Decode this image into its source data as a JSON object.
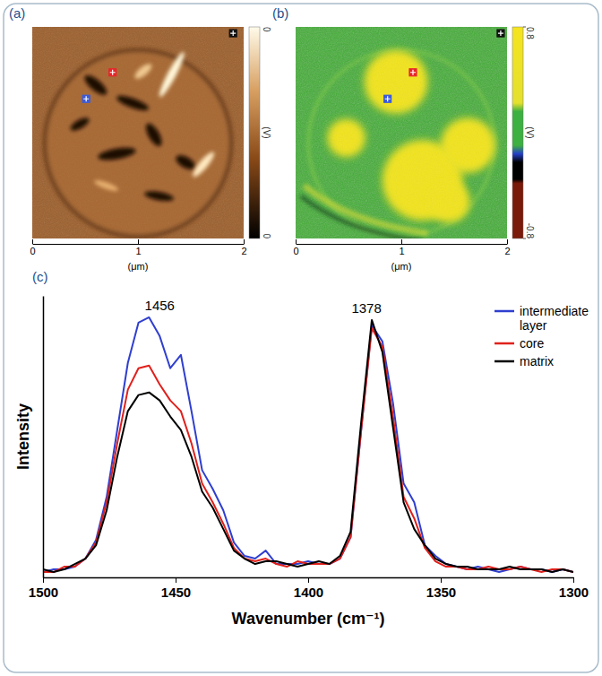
{
  "chart_data": [
    {
      "type": "image",
      "title": "(a)",
      "xlim": [
        0,
        2
      ],
      "ylim": [
        0,
        2
      ],
      "xticks": [
        0,
        1,
        2
      ],
      "xlabel": "(μm)",
      "tick_labels": "x",
      "markers": [
        {
          "x": 0.76,
          "y": 0.43,
          "color": "#e8262b"
        },
        {
          "x": 0.51,
          "y": 0.68,
          "color": "#3b5bd9"
        },
        {
          "x": 1.9,
          "y": 0.06,
          "color": "#111111"
        }
      ],
      "colorbar": {
        "labels": [
          "0",
          "(V)",
          "0"
        ]
      }
    },
    {
      "type": "image",
      "title": "(b)",
      "xlim": [
        0,
        2
      ],
      "ylim": [
        0,
        2
      ],
      "xticks": [
        0,
        1,
        2
      ],
      "xlabel": "(μm)",
      "tick_labels": "x",
      "markers": [
        {
          "x": 1.11,
          "y": 0.43,
          "color": "#e8262b"
        },
        {
          "x": 0.87,
          "y": 0.68,
          "color": "#3b5bd9"
        },
        {
          "x": 1.94,
          "y": 0.06,
          "color": "#111111"
        }
      ],
      "colorbar": {
        "range": [
          -0.8,
          0.8
        ],
        "ticks": [
          -0.8,
          0.8
        ],
        "unit": "(V)"
      }
    },
    {
      "type": "line",
      "title": "(c)",
      "xlabel": "Wavenumber (cm⁻¹)",
      "ylabel": "Intensity",
      "x": [
        1500,
        1496,
        1492,
        1488,
        1484,
        1480,
        1476,
        1472,
        1468,
        1464,
        1460,
        1456,
        1452,
        1448,
        1444,
        1440,
        1436,
        1432,
        1428,
        1424,
        1420,
        1416,
        1412,
        1408,
        1404,
        1400,
        1396,
        1392,
        1388,
        1384,
        1380,
        1376,
        1372,
        1368,
        1364,
        1360,
        1356,
        1352,
        1348,
        1344,
        1340,
        1336,
        1332,
        1328,
        1324,
        1320,
        1316,
        1312,
        1308,
        1304,
        1300
      ],
      "xlim": [
        1500,
        1300
      ],
      "xticks": [
        1500,
        1450,
        1400,
        1350,
        1300
      ],
      "ylim": [
        0,
        1.05
      ],
      "tick_labels": "x",
      "legend": "upper right",
      "series": [
        {
          "name": "intermediate layer",
          "color": "#2f3fd0",
          "values": [
            0.02,
            0.03,
            0.03,
            0.04,
            0.07,
            0.14,
            0.3,
            0.55,
            0.8,
            0.95,
            0.97,
            0.9,
            0.78,
            0.83,
            0.62,
            0.4,
            0.33,
            0.25,
            0.13,
            0.08,
            0.07,
            0.1,
            0.05,
            0.05,
            0.05,
            0.06,
            0.05,
            0.05,
            0.07,
            0.15,
            0.55,
            0.94,
            0.88,
            0.65,
            0.35,
            0.28,
            0.12,
            0.08,
            0.05,
            0.04,
            0.03,
            0.04,
            0.03,
            0.02,
            0.03,
            0.04,
            0.03,
            0.03,
            0.02,
            0.03,
            0.02
          ]
        },
        {
          "name": "core",
          "color": "#e0201c",
          "values": [
            0.02,
            0.02,
            0.04,
            0.04,
            0.07,
            0.13,
            0.28,
            0.5,
            0.7,
            0.78,
            0.79,
            0.72,
            0.66,
            0.62,
            0.5,
            0.35,
            0.28,
            0.2,
            0.11,
            0.07,
            0.06,
            0.07,
            0.05,
            0.04,
            0.06,
            0.05,
            0.05,
            0.05,
            0.07,
            0.15,
            0.55,
            0.93,
            0.86,
            0.6,
            0.3,
            0.22,
            0.11,
            0.06,
            0.04,
            0.04,
            0.03,
            0.03,
            0.04,
            0.03,
            0.03,
            0.04,
            0.03,
            0.02,
            0.03,
            0.03,
            0.02
          ]
        },
        {
          "name": "matrix",
          "color": "#000000",
          "values": [
            0.03,
            0.02,
            0.03,
            0.05,
            0.07,
            0.12,
            0.25,
            0.45,
            0.62,
            0.68,
            0.69,
            0.66,
            0.6,
            0.55,
            0.45,
            0.32,
            0.26,
            0.18,
            0.1,
            0.07,
            0.05,
            0.06,
            0.06,
            0.05,
            0.04,
            0.05,
            0.06,
            0.05,
            0.08,
            0.17,
            0.58,
            0.96,
            0.84,
            0.56,
            0.28,
            0.18,
            0.12,
            0.07,
            0.05,
            0.04,
            0.04,
            0.03,
            0.03,
            0.03,
            0.04,
            0.03,
            0.03,
            0.03,
            0.02,
            0.03,
            0.02
          ]
        }
      ],
      "annotations": [
        {
          "x": 1456,
          "label": "1456"
        },
        {
          "x": 1378,
          "label": "1378"
        }
      ]
    }
  ]
}
